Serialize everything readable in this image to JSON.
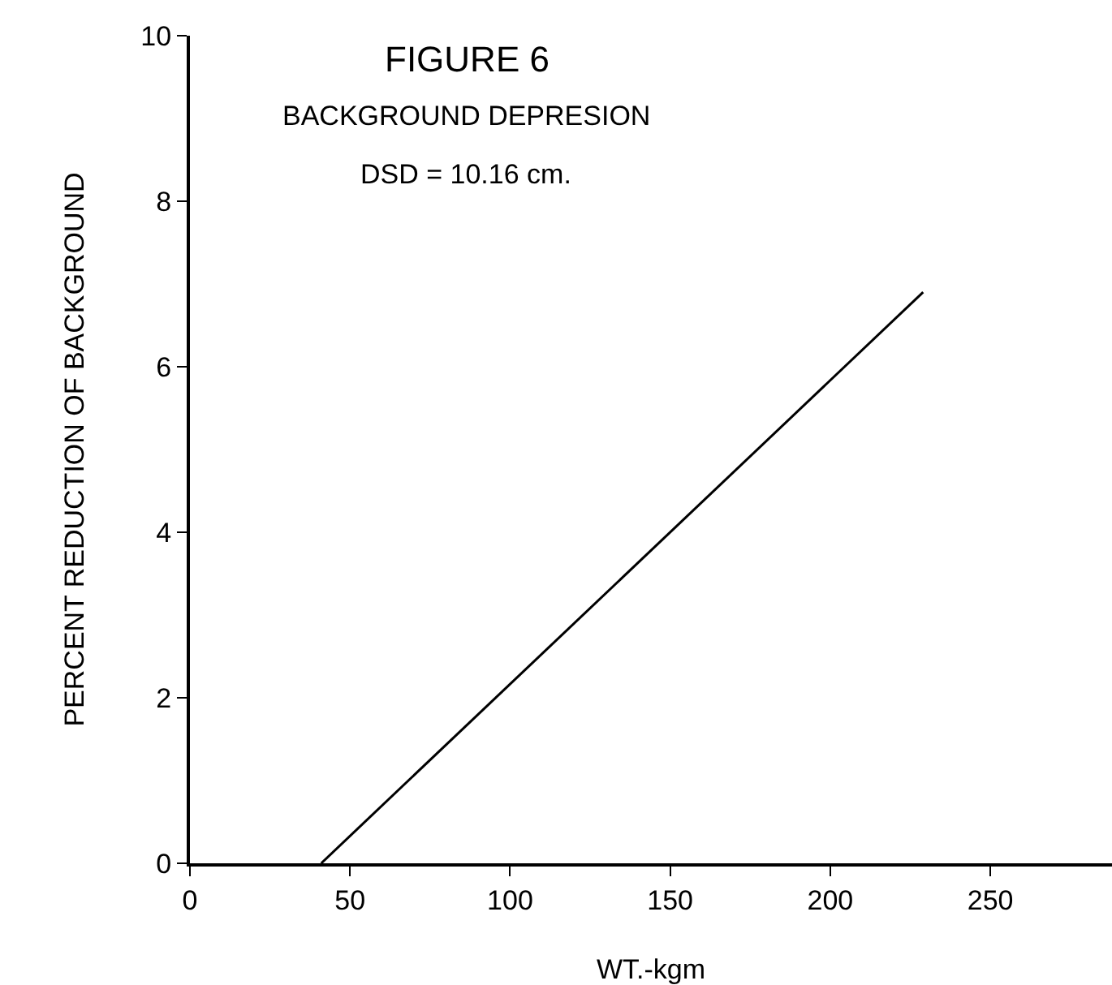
{
  "chart_data": {
    "type": "line",
    "title": "FIGURE 6",
    "subtitle": "BACKGROUND DEPRESION",
    "annotations": [
      "DSD = 10.16 cm."
    ],
    "xlabel": "WT.-kgm",
    "ylabel": "PERCENT REDUCTION OF BACKGROUND",
    "x": [
      41,
      229
    ],
    "series": [
      {
        "color": "#000000",
        "values": [
          0,
          6.9
        ]
      }
    ],
    "xlim": [
      0,
      288
    ],
    "xticks": [
      0,
      50,
      100,
      150,
      200,
      250
    ],
    "ylim": [
      0,
      10
    ],
    "yticks": [
      0,
      2,
      4,
      6,
      8,
      10
    ],
    "grid": false,
    "marker": "none",
    "line_style": "solid"
  }
}
